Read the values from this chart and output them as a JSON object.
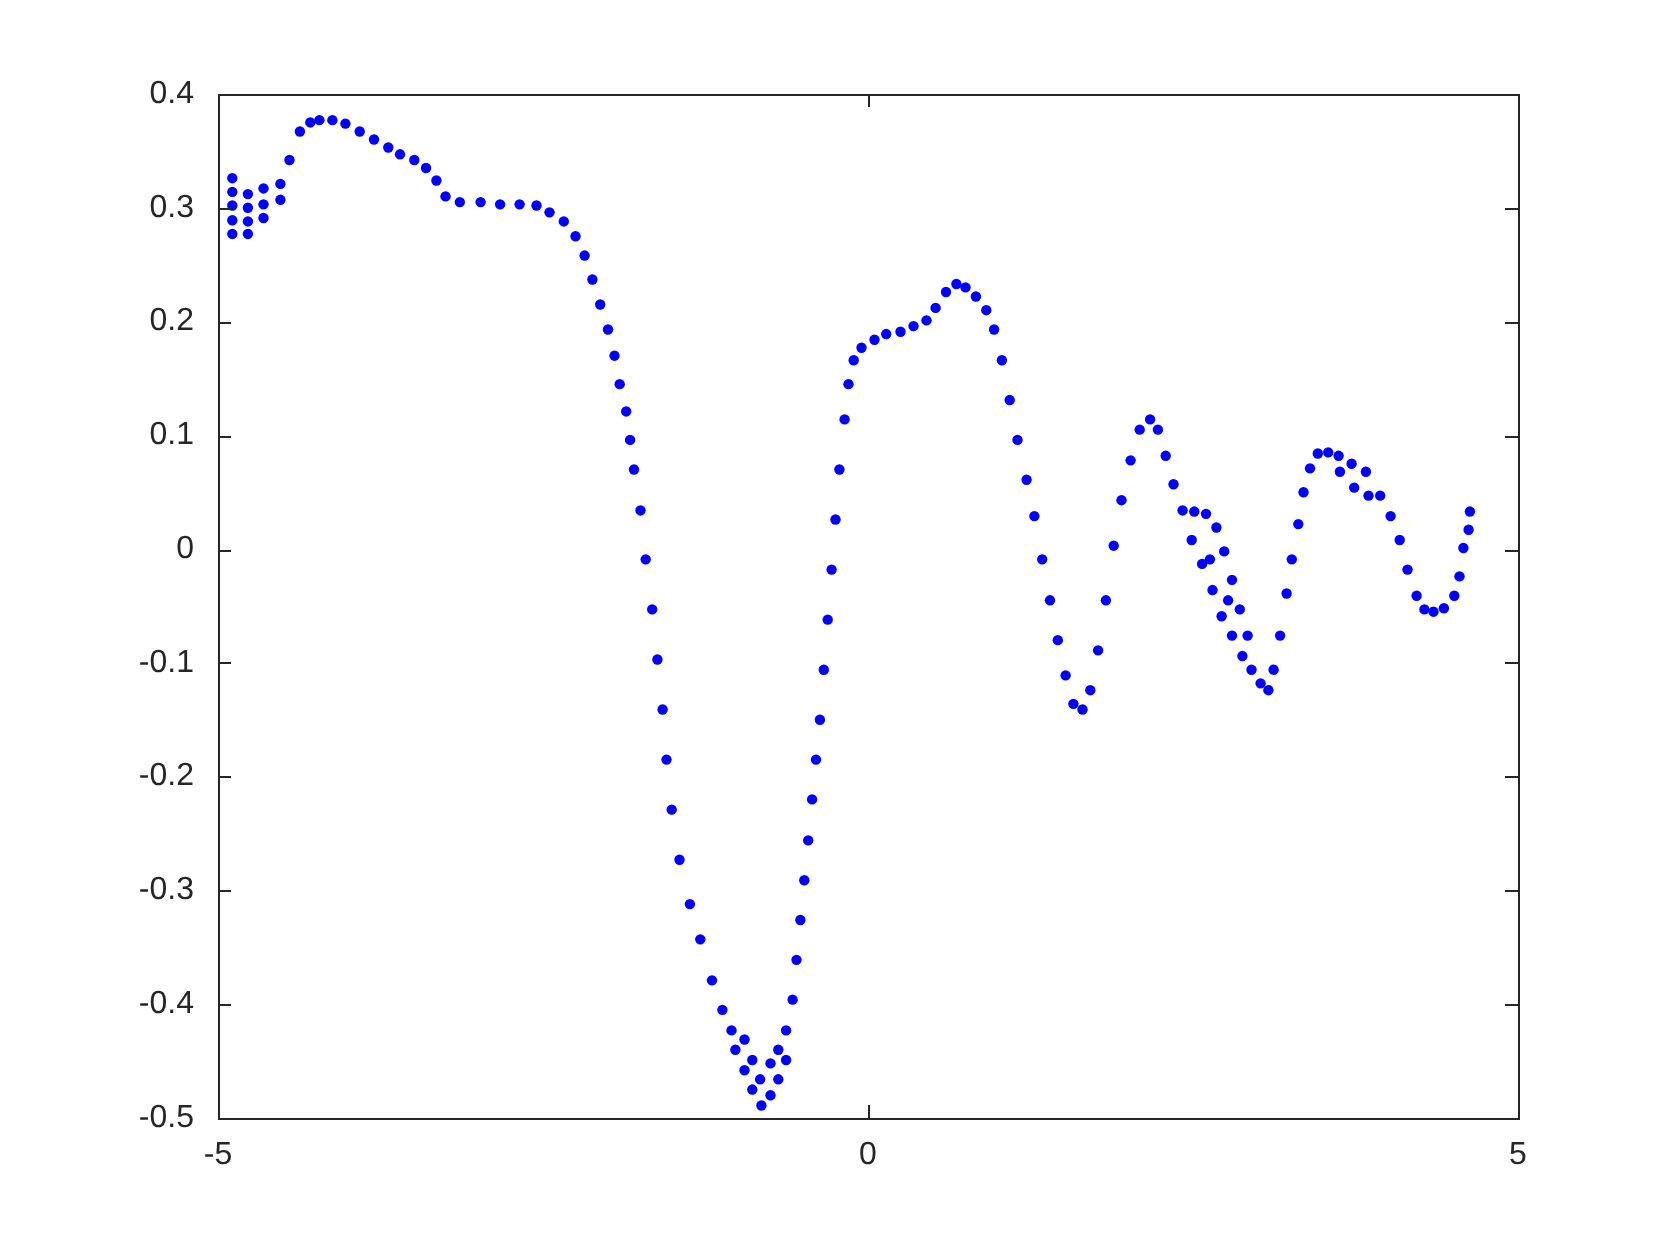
{
  "chart_data": {
    "type": "scatter",
    "x": [
      -4.89,
      -4.89,
      -4.89,
      -4.89,
      -4.89,
      -4.77,
      -4.77,
      -4.77,
      -4.77,
      -4.65,
      -4.65,
      -4.65,
      -4.52,
      -4.52,
      -4.45,
      -4.37,
      -4.29,
      -4.22,
      -4.12,
      -4.02,
      -3.91,
      -3.8,
      -3.69,
      -3.6,
      -3.49,
      -3.4,
      -3.32,
      -3.25,
      -3.14,
      -2.98,
      -2.83,
      -2.68,
      -2.55,
      -2.45,
      -2.34,
      -2.25,
      -2.18,
      -2.12,
      -2.06,
      -2.0,
      -1.95,
      -1.91,
      -1.86,
      -1.83,
      -1.8,
      -1.75,
      -1.71,
      -1.66,
      -1.62,
      -1.58,
      -1.55,
      -1.51,
      -1.45,
      -1.37,
      -1.29,
      -1.2,
      -1.12,
      -1.05,
      -1.02,
      -0.95,
      -0.95,
      -0.89,
      -0.89,
      -0.83,
      -0.82,
      -0.75,
      -0.75,
      -0.69,
      -0.69,
      -0.63,
      -0.63,
      -0.58,
      -0.55,
      -0.52,
      -0.49,
      -0.46,
      -0.43,
      -0.4,
      -0.37,
      -0.34,
      -0.31,
      -0.28,
      -0.25,
      -0.22,
      -0.18,
      -0.15,
      -0.11,
      -0.05,
      0.05,
      0.14,
      0.25,
      0.35,
      0.45,
      0.52,
      0.6,
      0.68,
      0.75,
      0.83,
      0.91,
      0.97,
      1.03,
      1.09,
      1.15,
      1.22,
      1.28,
      1.34,
      1.4,
      1.46,
      1.52,
      1.58,
      1.65,
      1.71,
      1.77,
      1.83,
      1.89,
      1.95,
      2.02,
      2.09,
      2.17,
      2.23,
      2.29,
      2.35,
      2.42,
      2.51,
      2.6,
      2.68,
      2.74,
      2.8,
      2.86,
      2.92,
      2.49,
      2.57,
      2.65,
      2.72,
      2.8,
      2.88,
      2.95,
      2.63,
      2.77,
      3.02,
      3.08,
      3.12,
      3.17,
      3.22,
      3.26,
      3.31,
      3.35,
      3.4,
      3.46,
      3.54,
      3.62,
      3.72,
      3.83,
      3.63,
      3.74,
      3.85,
      3.94,
      4.02,
      4.09,
      4.15,
      4.22,
      4.28,
      4.35,
      4.43,
      4.51,
      4.55,
      4.58,
      4.62,
      4.63
    ],
    "values": [
      0.326,
      0.314,
      0.302,
      0.289,
      0.277,
      0.312,
      0.3,
      0.288,
      0.277,
      0.317,
      0.303,
      0.291,
      0.321,
      0.307,
      0.342,
      0.367,
      0.375,
      0.377,
      0.377,
      0.374,
      0.367,
      0.36,
      0.353,
      0.347,
      0.342,
      0.335,
      0.324,
      0.31,
      0.305,
      0.305,
      0.303,
      0.303,
      0.302,
      0.296,
      0.288,
      0.275,
      0.258,
      0.237,
      0.215,
      0.193,
      0.17,
      0.145,
      0.121,
      0.096,
      0.07,
      0.034,
      -0.009,
      -0.053,
      -0.097,
      -0.141,
      -0.185,
      -0.229,
      -0.273,
      -0.312,
      -0.343,
      -0.379,
      -0.405,
      -0.423,
      -0.44,
      -0.431,
      -0.458,
      -0.449,
      -0.475,
      -0.466,
      -0.489,
      -0.48,
      -0.452,
      -0.466,
      -0.44,
      -0.449,
      -0.423,
      -0.396,
      -0.361,
      -0.326,
      -0.291,
      -0.256,
      -0.22,
      -0.185,
      -0.15,
      -0.106,
      -0.062,
      -0.018,
      0.026,
      0.07,
      0.114,
      0.145,
      0.166,
      0.177,
      0.184,
      0.189,
      0.191,
      0.196,
      0.201,
      0.212,
      0.226,
      0.233,
      0.23,
      0.222,
      0.21,
      0.193,
      0.166,
      0.131,
      0.096,
      0.061,
      0.029,
      -0.009,
      -0.045,
      -0.08,
      -0.111,
      -0.136,
      -0.141,
      -0.124,
      -0.089,
      -0.045,
      0.003,
      0.043,
      0.078,
      0.105,
      0.114,
      0.105,
      0.082,
      0.057,
      0.034,
      0.033,
      0.031,
      0.019,
      -0.002,
      -0.027,
      -0.053,
      -0.076,
      0.008,
      -0.013,
      -0.036,
      -0.059,
      -0.076,
      -0.094,
      -0.106,
      -0.009,
      -0.045,
      -0.118,
      -0.124,
      -0.106,
      -0.076,
      -0.039,
      -0.009,
      0.022,
      0.05,
      0.071,
      0.084,
      0.085,
      0.082,
      0.075,
      0.068,
      0.068,
      0.054,
      0.047,
      0.047,
      0.029,
      0.008,
      -0.018,
      -0.041,
      -0.053,
      -0.055,
      -0.052,
      -0.041,
      -0.024,
      0.001,
      0.017,
      0.033
    ],
    "color": "#0000ff",
    "marker": "circle",
    "xlim": [
      -5,
      5
    ],
    "xticks": [
      -5,
      0,
      5
    ],
    "ylim": [
      -0.5,
      0.4
    ],
    "yticks": [
      -0.5,
      -0.4,
      -0.3,
      -0.2,
      -0.1,
      0,
      0.1,
      0.2,
      0.3,
      0.4
    ],
    "grid": false,
    "legend": false
  }
}
